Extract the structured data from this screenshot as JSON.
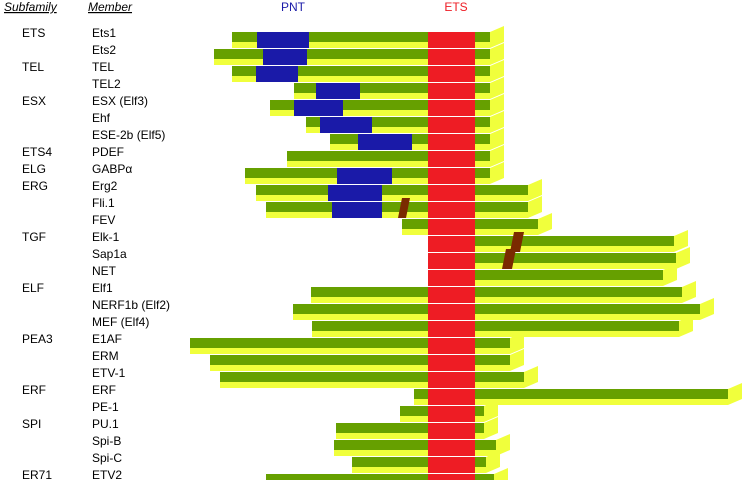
{
  "headers": {
    "subfamily": "Subfamily",
    "member": "Member"
  },
  "domains": [
    {
      "key": "pnt",
      "label": "PNT",
      "color": "#1a1aa8"
    },
    {
      "key": "ets",
      "label": "ETS",
      "color": "#ee1c24"
    }
  ],
  "colors": {
    "protein_top": "#66a000",
    "protein_side": "#f0ff3c",
    "pnt": "#1a1aa8",
    "ets": "#ee1c24",
    "motif": "#7a2a00"
  },
  "subfamilies": [
    "ETS",
    "TEL",
    "ESX",
    "ETS4",
    "ELG",
    "ERG",
    "TGF",
    "ELF",
    "PEA3",
    "ERF",
    "SPI",
    "ER71"
  ],
  "members": [
    "Ets1",
    "Ets2",
    "TEL",
    "TEL2",
    "ESX (Elf3)",
    "Ehf",
    "ESE-2b (Elf5)",
    "PDEF",
    "GABPα",
    "Erg2",
    "Fli.1",
    "FEV",
    "Elk-1",
    "Sap1a",
    "NET",
    "Elf1",
    "NERF1b (Elf2)",
    "MEF (Elf4)",
    "E1AF",
    "ERM",
    "ETV-1",
    "ERF",
    "PE-1",
    "PU.1",
    "Spi-B",
    "Spi-C",
    "ETV2"
  ],
  "subfamily_rows": [
    0,
    2,
    4,
    7,
    8,
    9,
    12,
    15,
    18,
    21,
    23,
    26
  ]
}
